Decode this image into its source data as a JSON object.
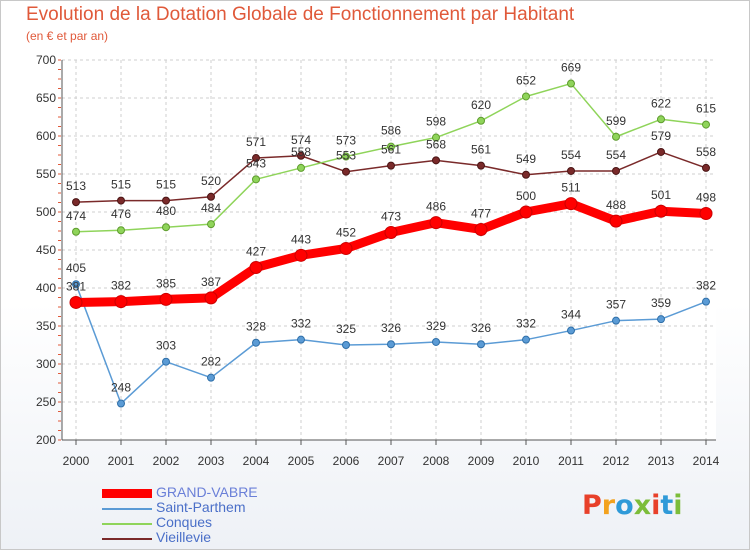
{
  "title": "Evolution de la Dotation Globale de Fonctionnement par Habitant",
  "subtitle": "(en € et par an)",
  "logo_text": "Proxiti",
  "logo_colors": [
    "#e8402a",
    "#f3a21e",
    "#2f9ad8",
    "#7cbd3a",
    "#e8402a",
    "#2f9ad8",
    "#7cbd3a"
  ],
  "chart_data": {
    "type": "line",
    "title": "Evolution de la Dotation Globale de Fonctionnement par Habitant",
    "subtitle": "(en € et par an)",
    "x": [
      2000,
      2001,
      2002,
      2003,
      2004,
      2005,
      2006,
      2007,
      2008,
      2009,
      2010,
      2011,
      2012,
      2013,
      2014
    ],
    "ylim": [
      200,
      700
    ],
    "yticks": [
      200,
      250,
      300,
      350,
      400,
      450,
      500,
      550,
      600,
      650,
      700
    ],
    "grid": true,
    "legend_position": "bottom-left",
    "series": [
      {
        "name": "GRAND-VABRE",
        "color": "#ff0000",
        "values": [
          381,
          382,
          385,
          387,
          427,
          443,
          452,
          473,
          486,
          477,
          500,
          511,
          488,
          501,
          498
        ]
      },
      {
        "name": "Saint-Parthem",
        "color": "#5b9bd5",
        "values": [
          405,
          248,
          303,
          282,
          328,
          332,
          325,
          326,
          329,
          326,
          332,
          344,
          357,
          359,
          382
        ]
      },
      {
        "name": "Conques",
        "color": "#8fd45a",
        "values": [
          474,
          476,
          480,
          484,
          543,
          558,
          573,
          586,
          598,
          620,
          652,
          669,
          599,
          622,
          615
        ]
      },
      {
        "name": "Vieillevie",
        "color": "#7a2a2a",
        "values": [
          513,
          515,
          515,
          520,
          571,
          574,
          553,
          561,
          568,
          561,
          549,
          554,
          554,
          579,
          558
        ]
      }
    ]
  }
}
